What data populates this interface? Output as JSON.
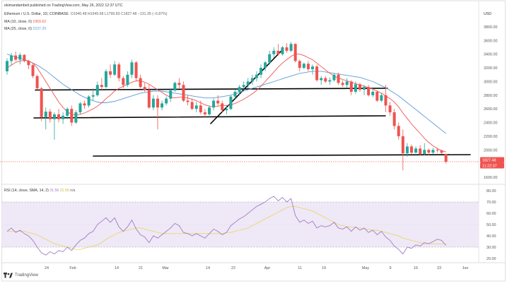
{
  "header": {
    "author": "ekimandambeli published on TradingView.com, May 26, 2022 12:37 UTC",
    "symbol": "Ethereum / U.S. Dollar, 1D, COINBASE",
    "ohlc": "O1940.48  H1945.68  L1799.83  C1827.48  −131.35 (−6.87%)",
    "ma10": "MA (10, close, 0)",
    "ma10_value": "1969.62",
    "ma25": "MA (25, close, 0)",
    "ma25_value": "2237.29",
    "currency": "USD",
    "price_badge": "1827.48",
    "countdown_badge": "11:22:37",
    "rsi_label": "RSI (14, close, SMA, 14, 2)",
    "rsi_value_1": "31.56",
    "rsi_value_2": "31.56",
    "rsi_value_3": "n/a",
    "logo": "TradingView"
  },
  "colors": {
    "up": "#26a69a",
    "down": "#ef5350",
    "ma10": "#ef5350",
    "ma25": "#5b9bd5",
    "rsi": "#a07cc5",
    "rsi_ma": "#e6d86a",
    "rsi_band": "#efe8f7",
    "trendline": "#000000",
    "price_badge": "#ef5350"
  },
  "chart_data": [
    {
      "type": "candlestick",
      "title": "Ethereum / U.S. Dollar, 1D, COINBASE",
      "ylabel": "USD",
      "ylim": [
        1500,
        4050
      ],
      "y_ticks": [
        1600,
        1800,
        2000,
        2200,
        2400,
        2600,
        2800,
        3000,
        3200,
        3400,
        3600,
        3800
      ],
      "x_ticks": [
        "24",
        "Feb",
        "7",
        "14",
        "21",
        "Mar",
        "7",
        "14",
        "22",
        "Apr",
        "11",
        "19",
        "May",
        "9",
        "16",
        "23",
        "Jun"
      ],
      "grid": false,
      "last_price": 1827.48,
      "candles": [
        [
          3150,
          3340,
          3100,
          3300
        ],
        [
          3300,
          3420,
          3240,
          3380
        ],
        [
          3380,
          3440,
          3300,
          3320
        ],
        [
          3320,
          3420,
          3250,
          3390
        ],
        [
          3390,
          3400,
          3280,
          3300
        ],
        [
          3300,
          3320,
          3180,
          3240
        ],
        [
          3240,
          3260,
          3050,
          3080
        ],
        [
          3080,
          3100,
          2880,
          2900
        ],
        [
          2900,
          2920,
          2420,
          2480
        ],
        [
          2480,
          2620,
          2300,
          2560
        ],
        [
          2560,
          2600,
          2400,
          2450
        ],
        [
          2450,
          2550,
          2150,
          2520
        ],
        [
          2520,
          2600,
          2400,
          2450
        ],
        [
          2450,
          2550,
          2380,
          2500
        ],
        [
          2500,
          2620,
          2450,
          2600
        ],
        [
          2600,
          2650,
          2350,
          2400
        ],
        [
          2400,
          2580,
          2380,
          2550
        ],
        [
          2550,
          2700,
          2520,
          2680
        ],
        [
          2680,
          2720,
          2600,
          2650
        ],
        [
          2650,
          2800,
          2620,
          2780
        ],
        [
          2780,
          2900,
          2720,
          2800
        ],
        [
          2800,
          3000,
          2780,
          2950
        ],
        [
          2950,
          3050,
          2880,
          2920
        ],
        [
          2920,
          3180,
          2900,
          3150
        ],
        [
          3150,
          3250,
          3050,
          3100
        ],
        [
          3100,
          3300,
          3080,
          3250
        ],
        [
          3250,
          3280,
          3000,
          3050
        ],
        [
          3050,
          3080,
          2900,
          2950
        ],
        [
          2950,
          3150,
          2920,
          3100
        ],
        [
          3100,
          3320,
          3050,
          3280
        ],
        [
          3280,
          3300,
          3000,
          3050
        ],
        [
          3050,
          3100,
          2900,
          2920
        ],
        [
          2920,
          2980,
          2850,
          2880
        ],
        [
          2880,
          2950,
          2600,
          2620
        ],
        [
          2620,
          2800,
          2580,
          2750
        ],
        [
          2750,
          2800,
          2300,
          2620
        ],
        [
          2620,
          2720,
          2580,
          2680
        ],
        [
          2680,
          2780,
          2650,
          2750
        ],
        [
          2750,
          2900,
          2700,
          2870
        ],
        [
          2870,
          3000,
          2850,
          2980
        ],
        [
          2980,
          3050,
          2900,
          2950
        ],
        [
          2950,
          3000,
          2700,
          2720
        ],
        [
          2720,
          2800,
          2650,
          2700
        ],
        [
          2700,
          2750,
          2580,
          2600
        ],
        [
          2600,
          2700,
          2550,
          2650
        ],
        [
          2650,
          2720,
          2520,
          2550
        ],
        [
          2550,
          2600,
          2480,
          2520
        ],
        [
          2520,
          2650,
          2500,
          2620
        ],
        [
          2620,
          2750,
          2580,
          2720
        ],
        [
          2720,
          2800,
          2650,
          2680
        ],
        [
          2680,
          2720,
          2550,
          2580
        ],
        [
          2580,
          2650,
          2520,
          2600
        ],
        [
          2600,
          2800,
          2580,
          2780
        ],
        [
          2780,
          2880,
          2750,
          2850
        ],
        [
          2850,
          2950,
          2800,
          2920
        ],
        [
          2920,
          3000,
          2880,
          2950
        ],
        [
          2950,
          3050,
          2900,
          3000
        ],
        [
          3000,
          3100,
          2950,
          3050
        ],
        [
          3050,
          3150,
          3000,
          3100
        ],
        [
          3100,
          3250,
          3050,
          3200
        ],
        [
          3200,
          3300,
          3150,
          3280
        ],
        [
          3280,
          3450,
          3250,
          3400
        ],
        [
          3400,
          3500,
          3350,
          3450
        ],
        [
          3450,
          3550,
          3380,
          3400
        ],
        [
          3400,
          3520,
          3380,
          3500
        ],
        [
          3500,
          3560,
          3420,
          3450
        ],
        [
          3450,
          3580,
          3430,
          3550
        ],
        [
          3550,
          3560,
          3280,
          3300
        ],
        [
          3300,
          3320,
          3150,
          3200
        ],
        [
          3200,
          3280,
          3180,
          3260
        ],
        [
          3260,
          3300,
          3150,
          3180
        ],
        [
          3180,
          3250,
          3100,
          3220
        ],
        [
          3220,
          3250,
          3000,
          3020
        ],
        [
          3020,
          3080,
          2950,
          3050
        ],
        [
          3050,
          3080,
          2980,
          3000
        ],
        [
          3000,
          3060,
          2950,
          3020
        ],
        [
          3020,
          3120,
          3000,
          3100
        ],
        [
          3100,
          3130,
          2950,
          2980
        ],
        [
          2980,
          3020,
          2920,
          2950
        ],
        [
          2950,
          3050,
          2900,
          3000
        ],
        [
          3000,
          3020,
          2800,
          2850
        ],
        [
          2850,
          3000,
          2820,
          2960
        ],
        [
          2960,
          2980,
          2850,
          2880
        ],
        [
          2880,
          2950,
          2800,
          2920
        ],
        [
          2920,
          2950,
          2780,
          2800
        ],
        [
          2800,
          2900,
          2770,
          2850
        ],
        [
          2850,
          2870,
          2700,
          2720
        ],
        [
          2720,
          2830,
          2700,
          2800
        ],
        [
          2800,
          2950,
          2550,
          2650
        ],
        [
          2650,
          2700,
          2500,
          2550
        ],
        [
          2550,
          2600,
          2300,
          2350
        ],
        [
          2350,
          2400,
          2150,
          2200
        ],
        [
          2200,
          2300,
          1700,
          1950
        ],
        [
          1950,
          2100,
          1900,
          2050
        ],
        [
          2050,
          2080,
          1930,
          1960
        ],
        [
          1960,
          2050,
          1950,
          2020
        ],
        [
          2020,
          2070,
          1920,
          1940
        ],
        [
          1940,
          2100,
          1920,
          2000
        ],
        [
          2000,
          2020,
          1920,
          1960
        ],
        [
          1960,
          2030,
          1940,
          2000
        ],
        [
          2000,
          2030,
          1960,
          1990
        ],
        [
          1990,
          2000,
          1940,
          1958
        ],
        [
          1940,
          1946,
          1800,
          1827
        ]
      ],
      "ma10": [
        3200,
        3240,
        3280,
        3300,
        3310,
        3300,
        3270,
        3200,
        3100,
        3000,
        2900,
        2800,
        2700,
        2620,
        2560,
        2520,
        2510,
        2520,
        2540,
        2570,
        2600,
        2640,
        2690,
        2750,
        2800,
        2860,
        2900,
        2930,
        2960,
        2990,
        3010,
        3010,
        2990,
        2960,
        2920,
        2880,
        2840,
        2800,
        2770,
        2760,
        2770,
        2770,
        2760,
        2740,
        2720,
        2690,
        2660,
        2640,
        2630,
        2640,
        2650,
        2650,
        2660,
        2680,
        2710,
        2740,
        2780,
        2820,
        2870,
        2930,
        3000,
        3070,
        3140,
        3210,
        3270,
        3320,
        3370,
        3400,
        3400,
        3380,
        3350,
        3320,
        3270,
        3220,
        3170,
        3120,
        3080,
        3050,
        3030,
        3010,
        2990,
        2970,
        2950,
        2930,
        2910,
        2890,
        2860,
        2830,
        2790,
        2750,
        2700,
        2630,
        2540,
        2460,
        2380,
        2310,
        2240,
        2170,
        2110,
        2060,
        2020,
        1990,
        1970
      ],
      "ma25": [
        3400,
        3380,
        3360,
        3340,
        3320,
        3300,
        3270,
        3240,
        3200,
        3160,
        3110,
        3060,
        3010,
        2960,
        2920,
        2880,
        2840,
        2800,
        2770,
        2740,
        2720,
        2700,
        2690,
        2690,
        2700,
        2710,
        2730,
        2750,
        2770,
        2790,
        2810,
        2830,
        2840,
        2850,
        2860,
        2860,
        2860,
        2850,
        2840,
        2830,
        2820,
        2810,
        2800,
        2790,
        2780,
        2770,
        2760,
        2760,
        2760,
        2770,
        2780,
        2790,
        2800,
        2820,
        2840,
        2860,
        2880,
        2900,
        2920,
        2940,
        2960,
        2980,
        3000,
        3020,
        3040,
        3060,
        3080,
        3100,
        3120,
        3130,
        3140,
        3150,
        3150,
        3150,
        3140,
        3130,
        3120,
        3110,
        3100,
        3090,
        3080,
        3070,
        3060,
        3040,
        3020,
        3000,
        2970,
        2940,
        2910,
        2870,
        2830,
        2790,
        2740,
        2690,
        2640,
        2590,
        2540,
        2490,
        2440,
        2390,
        2340,
        2290,
        2240
      ]
    },
    {
      "type": "line",
      "title": "RSI (14, close, SMA, 14, 2)",
      "ylim": [
        17,
        83
      ],
      "y_ticks": [
        20,
        30,
        40,
        50,
        60,
        70,
        80
      ],
      "upper_band": 70,
      "lower_band": 30,
      "series": [
        {
          "name": "RSI",
          "values": [
            44,
            47,
            43,
            45,
            42,
            40,
            36,
            30,
            25,
            23,
            26,
            24,
            27,
            26,
            30,
            27,
            32,
            36,
            38,
            42,
            44,
            50,
            53,
            56,
            52,
            56,
            48,
            44,
            48,
            54,
            46,
            41,
            39,
            34,
            40,
            38,
            41,
            44,
            47,
            51,
            49,
            43,
            42,
            40,
            42,
            40,
            38,
            42,
            46,
            44,
            41,
            43,
            49,
            52,
            55,
            57,
            60,
            63,
            66,
            68,
            70,
            73,
            75,
            71,
            74,
            70,
            73,
            58,
            52,
            54,
            51,
            53,
            47,
            49,
            48,
            49,
            52,
            47,
            46,
            48,
            44,
            48,
            45,
            47,
            43,
            45,
            41,
            44,
            39,
            36,
            31,
            28,
            24,
            30,
            29,
            32,
            31,
            34,
            33,
            35,
            37,
            36,
            31.56
          ]
        },
        {
          "name": "RSI-based MA",
          "values": [
            44,
            44,
            44,
            44,
            44,
            43,
            42,
            41,
            39,
            37,
            35,
            33,
            32,
            31,
            30,
            29,
            28,
            28,
            29,
            30,
            31,
            32,
            34,
            37,
            39,
            41,
            43,
            44,
            45,
            46,
            47,
            47,
            46,
            45,
            44,
            43,
            42,
            42,
            42,
            42,
            42,
            42,
            42,
            42,
            42,
            42,
            42,
            42,
            42,
            42,
            42,
            43,
            43,
            44,
            45,
            46,
            47,
            49,
            51,
            53,
            55,
            57,
            59,
            61,
            63,
            65,
            66,
            66,
            65,
            64,
            63,
            62,
            60,
            58,
            56,
            54,
            52,
            50,
            49,
            48,
            48,
            47,
            47,
            46,
            46,
            45,
            45,
            44,
            43,
            42,
            41,
            40,
            38,
            37,
            36,
            35,
            34,
            33,
            33,
            33,
            33,
            33,
            33
          ]
        }
      ]
    }
  ]
}
